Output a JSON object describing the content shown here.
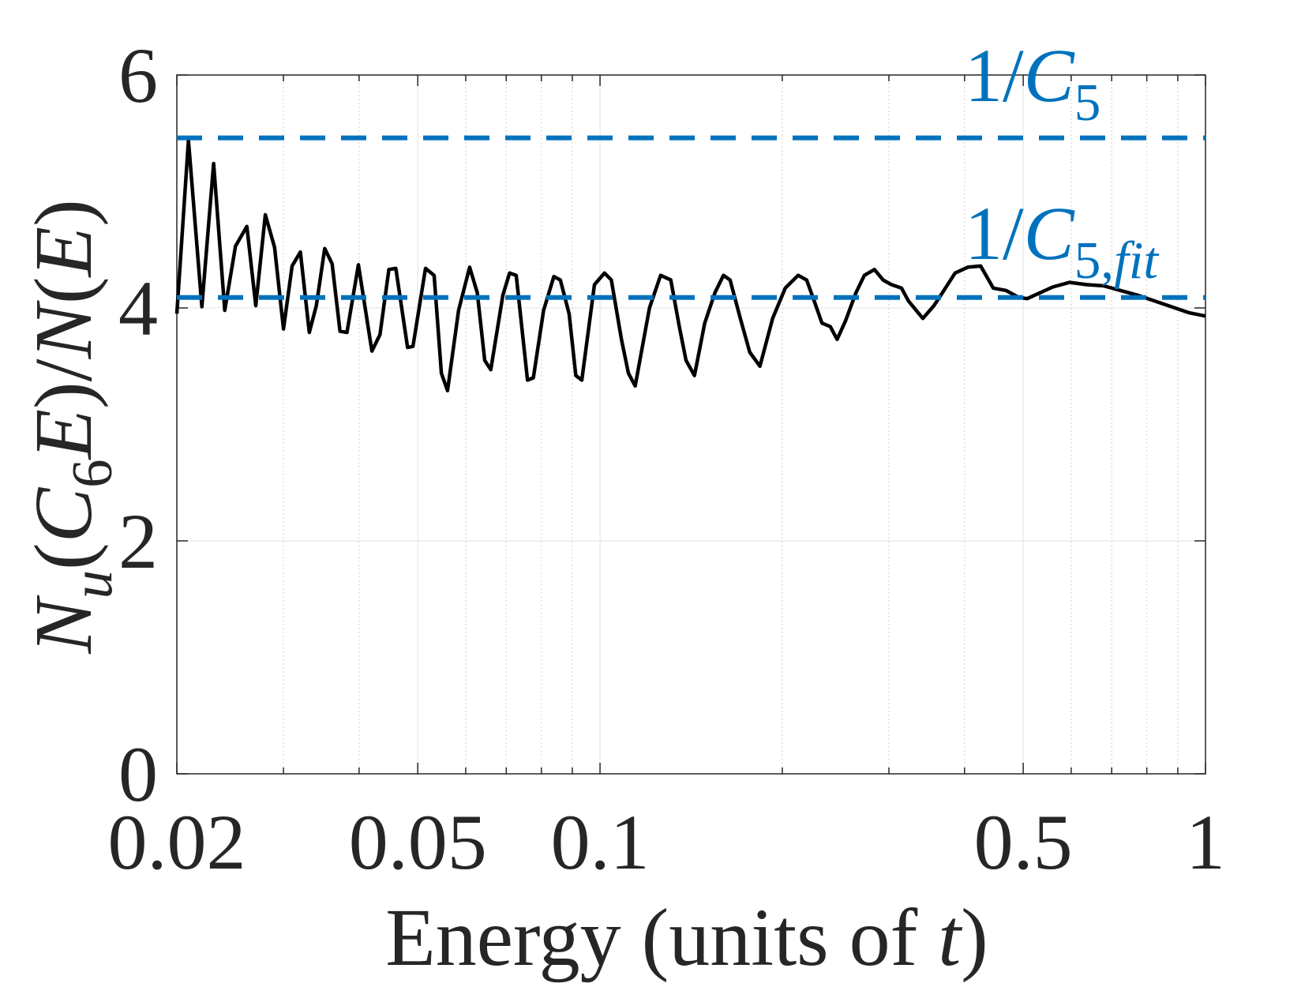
{
  "chart_data": {
    "type": "line",
    "xlabel": [
      {
        "text": "Energy (units of "
      },
      {
        "text": "t",
        "italic": true
      },
      {
        "text": ")"
      }
    ],
    "ylabel": [
      {
        "text": "N",
        "italic": true
      },
      {
        "text": "u",
        "italic": true,
        "sub": true
      },
      {
        "text": "("
      },
      {
        "text": "C",
        "italic": true
      },
      {
        "text": "6",
        "sub": true
      },
      {
        "text": "E",
        "italic": true
      },
      {
        "text": ")/"
      },
      {
        "text": "N",
        "italic": true
      },
      {
        "text": "("
      },
      {
        "text": "E",
        "italic": true
      },
      {
        "text": ")"
      }
    ],
    "xscale": "log",
    "xlim": [
      0.02,
      1
    ],
    "xticks": [
      0.02,
      0.05,
      0.1,
      0.5,
      1
    ],
    "xminorticks": [
      0.03,
      0.04,
      0.06,
      0.07,
      0.08,
      0.09,
      0.2,
      0.3,
      0.4,
      0.6,
      0.7,
      0.8,
      0.9
    ],
    "ylim": [
      0,
      6
    ],
    "yticks": [
      0,
      2,
      4,
      6
    ],
    "grid": true,
    "color": "#000000",
    "x": [
      0.02,
      0.0209,
      0.022,
      0.023,
      0.024,
      0.025,
      0.0261,
      0.027,
      0.028,
      0.029,
      0.03,
      0.031,
      0.032,
      0.0331,
      0.034,
      0.0351,
      0.0361,
      0.0372,
      0.0382,
      0.0399,
      0.042,
      0.0433,
      0.0448,
      0.046,
      0.0481,
      0.0491,
      0.0515,
      0.0532,
      0.0547,
      0.056,
      0.0584,
      0.0609,
      0.0627,
      0.0645,
      0.066,
      0.0691,
      0.0709,
      0.0727,
      0.0759,
      0.0776,
      0.0807,
      0.0839,
      0.086,
      0.0889,
      0.0912,
      0.0933,
      0.0979,
      0.1017,
      0.1044,
      0.1085,
      0.1114,
      0.1143,
      0.1207,
      0.1259,
      0.1309,
      0.1352,
      0.1387,
      0.1432,
      0.1489,
      0.1548,
      0.1599,
      0.164,
      0.1705,
      0.1767,
      0.1837,
      0.1928,
      0.2023,
      0.2124,
      0.2194,
      0.2251,
      0.2326,
      0.24,
      0.2464,
      0.2544,
      0.2646,
      0.2733,
      0.284,
      0.2934,
      0.303,
      0.3148,
      0.3231,
      0.3414,
      0.356,
      0.3677,
      0.3858,
      0.405,
      0.4252,
      0.4462,
      0.4684,
      0.4916,
      0.5077,
      0.5329,
      0.5594,
      0.5966,
      0.6364,
      0.6788,
      0.724,
      0.7723,
      0.8238,
      0.8788,
      0.9374,
      1.0
    ],
    "values": [
      3.95,
      5.44,
      4.01,
      5.24,
      3.98,
      4.53,
      4.7,
      4.02,
      4.8,
      4.52,
      3.82,
      4.36,
      4.48,
      3.79,
      4.02,
      4.51,
      4.38,
      3.8,
      3.79,
      4.37,
      3.63,
      3.77,
      4.33,
      4.34,
      3.66,
      3.67,
      4.34,
      4.28,
      3.44,
      3.29,
      3.98,
      4.35,
      4.13,
      3.55,
      3.47,
      4.11,
      4.3,
      4.28,
      3.38,
      3.4,
      3.98,
      4.27,
      4.24,
      3.95,
      3.42,
      3.38,
      4.2,
      4.3,
      4.24,
      3.73,
      3.44,
      3.33,
      4.0,
      4.28,
      4.24,
      3.84,
      3.55,
      3.42,
      3.87,
      4.13,
      4.28,
      4.24,
      3.91,
      3.62,
      3.5,
      3.91,
      4.17,
      4.28,
      4.24,
      4.08,
      3.87,
      3.84,
      3.73,
      3.89,
      4.13,
      4.28,
      4.33,
      4.24,
      4.2,
      4.17,
      4.06,
      3.91,
      4.02,
      4.13,
      4.3,
      4.35,
      4.36,
      4.17,
      4.15,
      4.09,
      4.08,
      4.13,
      4.18,
      4.22,
      4.2,
      4.19,
      4.15,
      4.11,
      4.06,
      4.01,
      3.96,
      3.93
    ],
    "hlines": [
      {
        "value": 5.46,
        "color": "#0072bd",
        "style": "dashed",
        "label": [
          {
            "text": "1/"
          },
          {
            "text": "C",
            "italic": true
          },
          {
            "text": "5",
            "sub": true
          }
        ]
      },
      {
        "value": 4.09,
        "color": "#0072bd",
        "style": "dashed",
        "label": [
          {
            "text": "1/"
          },
          {
            "text": "C",
            "italic": true
          },
          {
            "text": "5,",
            "sub": true
          },
          {
            "text": "fit",
            "italic": true,
            "sub": true
          }
        ]
      }
    ]
  }
}
